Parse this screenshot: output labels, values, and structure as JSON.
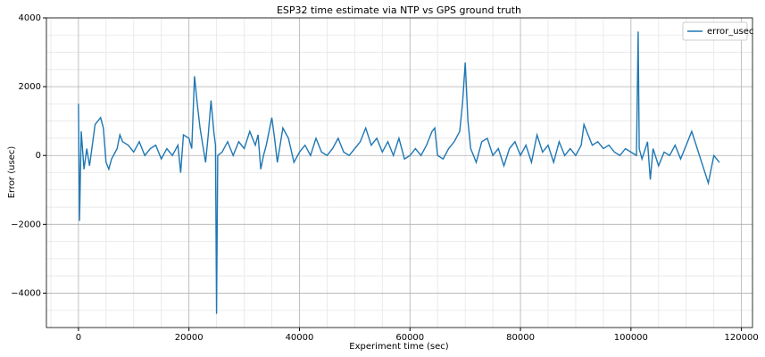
{
  "chart_data": {
    "type": "line",
    "title": "ESP32 time estimate via NTP vs GPS ground truth",
    "x_label": "Experiment time (sec)",
    "y_label": "Error (usec)",
    "xlim": [
      -5800,
      122000
    ],
    "ylim": [
      -5000,
      4000
    ],
    "xticks": [
      0,
      20000,
      40000,
      60000,
      80000,
      100000,
      120000
    ],
    "yticks": [
      {
        "value": -4000,
        "label": "−4000"
      },
      {
        "value": -2000,
        "label": "−2000"
      },
      0,
      2000,
      4000
    ],
    "xminorticks": [
      -5000,
      5000,
      10000,
      15000,
      25000,
      30000,
      35000,
      45000,
      50000,
      55000,
      65000,
      70000,
      75000,
      85000,
      90000,
      95000,
      105000,
      110000,
      115000
    ],
    "yminorticks": [
      -4500,
      -3500,
      -3000,
      -2500,
      -1500,
      -1000,
      -500,
      500,
      1000,
      1500,
      2500,
      3000,
      3500
    ],
    "grid": true,
    "minor_grid": true,
    "legend": "upper right",
    "series": [
      {
        "name": "error_usec",
        "color": "#1f77b4",
        "x": [
          0,
          200,
          500,
          1000,
          1500,
          2000,
          2500,
          3000,
          3500,
          4000,
          4500,
          5000,
          5500,
          6000,
          7000,
          7500,
          8000,
          9000,
          10000,
          11000,
          12000,
          13000,
          14000,
          15000,
          16000,
          17000,
          18000,
          18500,
          19000,
          20000,
          20500,
          21000,
          21500,
          22000,
          22500,
          23000,
          23500,
          24000,
          24500,
          24800,
          25000,
          25200,
          26000,
          27000,
          28000,
          29000,
          30000,
          31000,
          32000,
          32500,
          33000,
          33500,
          34000,
          35000,
          35500,
          36000,
          37000,
          38000,
          39000,
          40000,
          41000,
          42000,
          43000,
          44000,
          45000,
          46000,
          47000,
          48000,
          49000,
          50000,
          51000,
          52000,
          53000,
          54000,
          55000,
          56000,
          57000,
          58000,
          59000,
          60000,
          61000,
          62000,
          63000,
          64000,
          64500,
          65000,
          66000,
          67000,
          68000,
          69000,
          69500,
          70000,
          70500,
          71000,
          72000,
          73000,
          74000,
          75000,
          76000,
          77000,
          78000,
          79000,
          80000,
          81000,
          82000,
          83000,
          84000,
          85000,
          86000,
          87000,
          88000,
          89000,
          90000,
          91000,
          91500,
          92000,
          93000,
          94000,
          95000,
          96000,
          97000,
          98000,
          99000,
          100000,
          101000,
          101300,
          101500,
          102000,
          103000,
          103500,
          104000,
          105000,
          106000,
          107000,
          108000,
          109000,
          110000,
          111000,
          112000,
          113000,
          114000,
          115000,
          116000
        ],
        "values": [
          1500,
          -1900,
          700,
          -400,
          200,
          -300,
          300,
          900,
          1000,
          1100,
          800,
          -200,
          -400,
          -100,
          200,
          600,
          400,
          300,
          100,
          400,
          0,
          200,
          300,
          -100,
          200,
          0,
          300,
          -500,
          600,
          500,
          200,
          2300,
          1500,
          800,
          300,
          -200,
          600,
          1600,
          700,
          300,
          -4600,
          0,
          100,
          400,
          0,
          400,
          200,
          700,
          300,
          600,
          -400,
          0,
          300,
          1100,
          500,
          -200,
          800,
          500,
          -200,
          100,
          300,
          0,
          500,
          100,
          0,
          200,
          500,
          100,
          0,
          200,
          400,
          800,
          300,
          500,
          100,
          400,
          0,
          500,
          -100,
          0,
          200,
          0,
          300,
          700,
          800,
          0,
          -100,
          200,
          400,
          700,
          1500,
          2700,
          1000,
          200,
          -200,
          400,
          500,
          0,
          200,
          -300,
          200,
          400,
          0,
          300,
          -200,
          600,
          100,
          300,
          -200,
          400,
          0,
          200,
          0,
          300,
          900,
          700,
          300,
          400,
          200,
          300,
          100,
          0,
          200,
          100,
          0,
          3600,
          200,
          -100,
          400,
          -700,
          200,
          -300,
          100,
          0,
          300,
          -100,
          300,
          700,
          200,
          -300,
          -800,
          0,
          -200
        ]
      }
    ]
  }
}
